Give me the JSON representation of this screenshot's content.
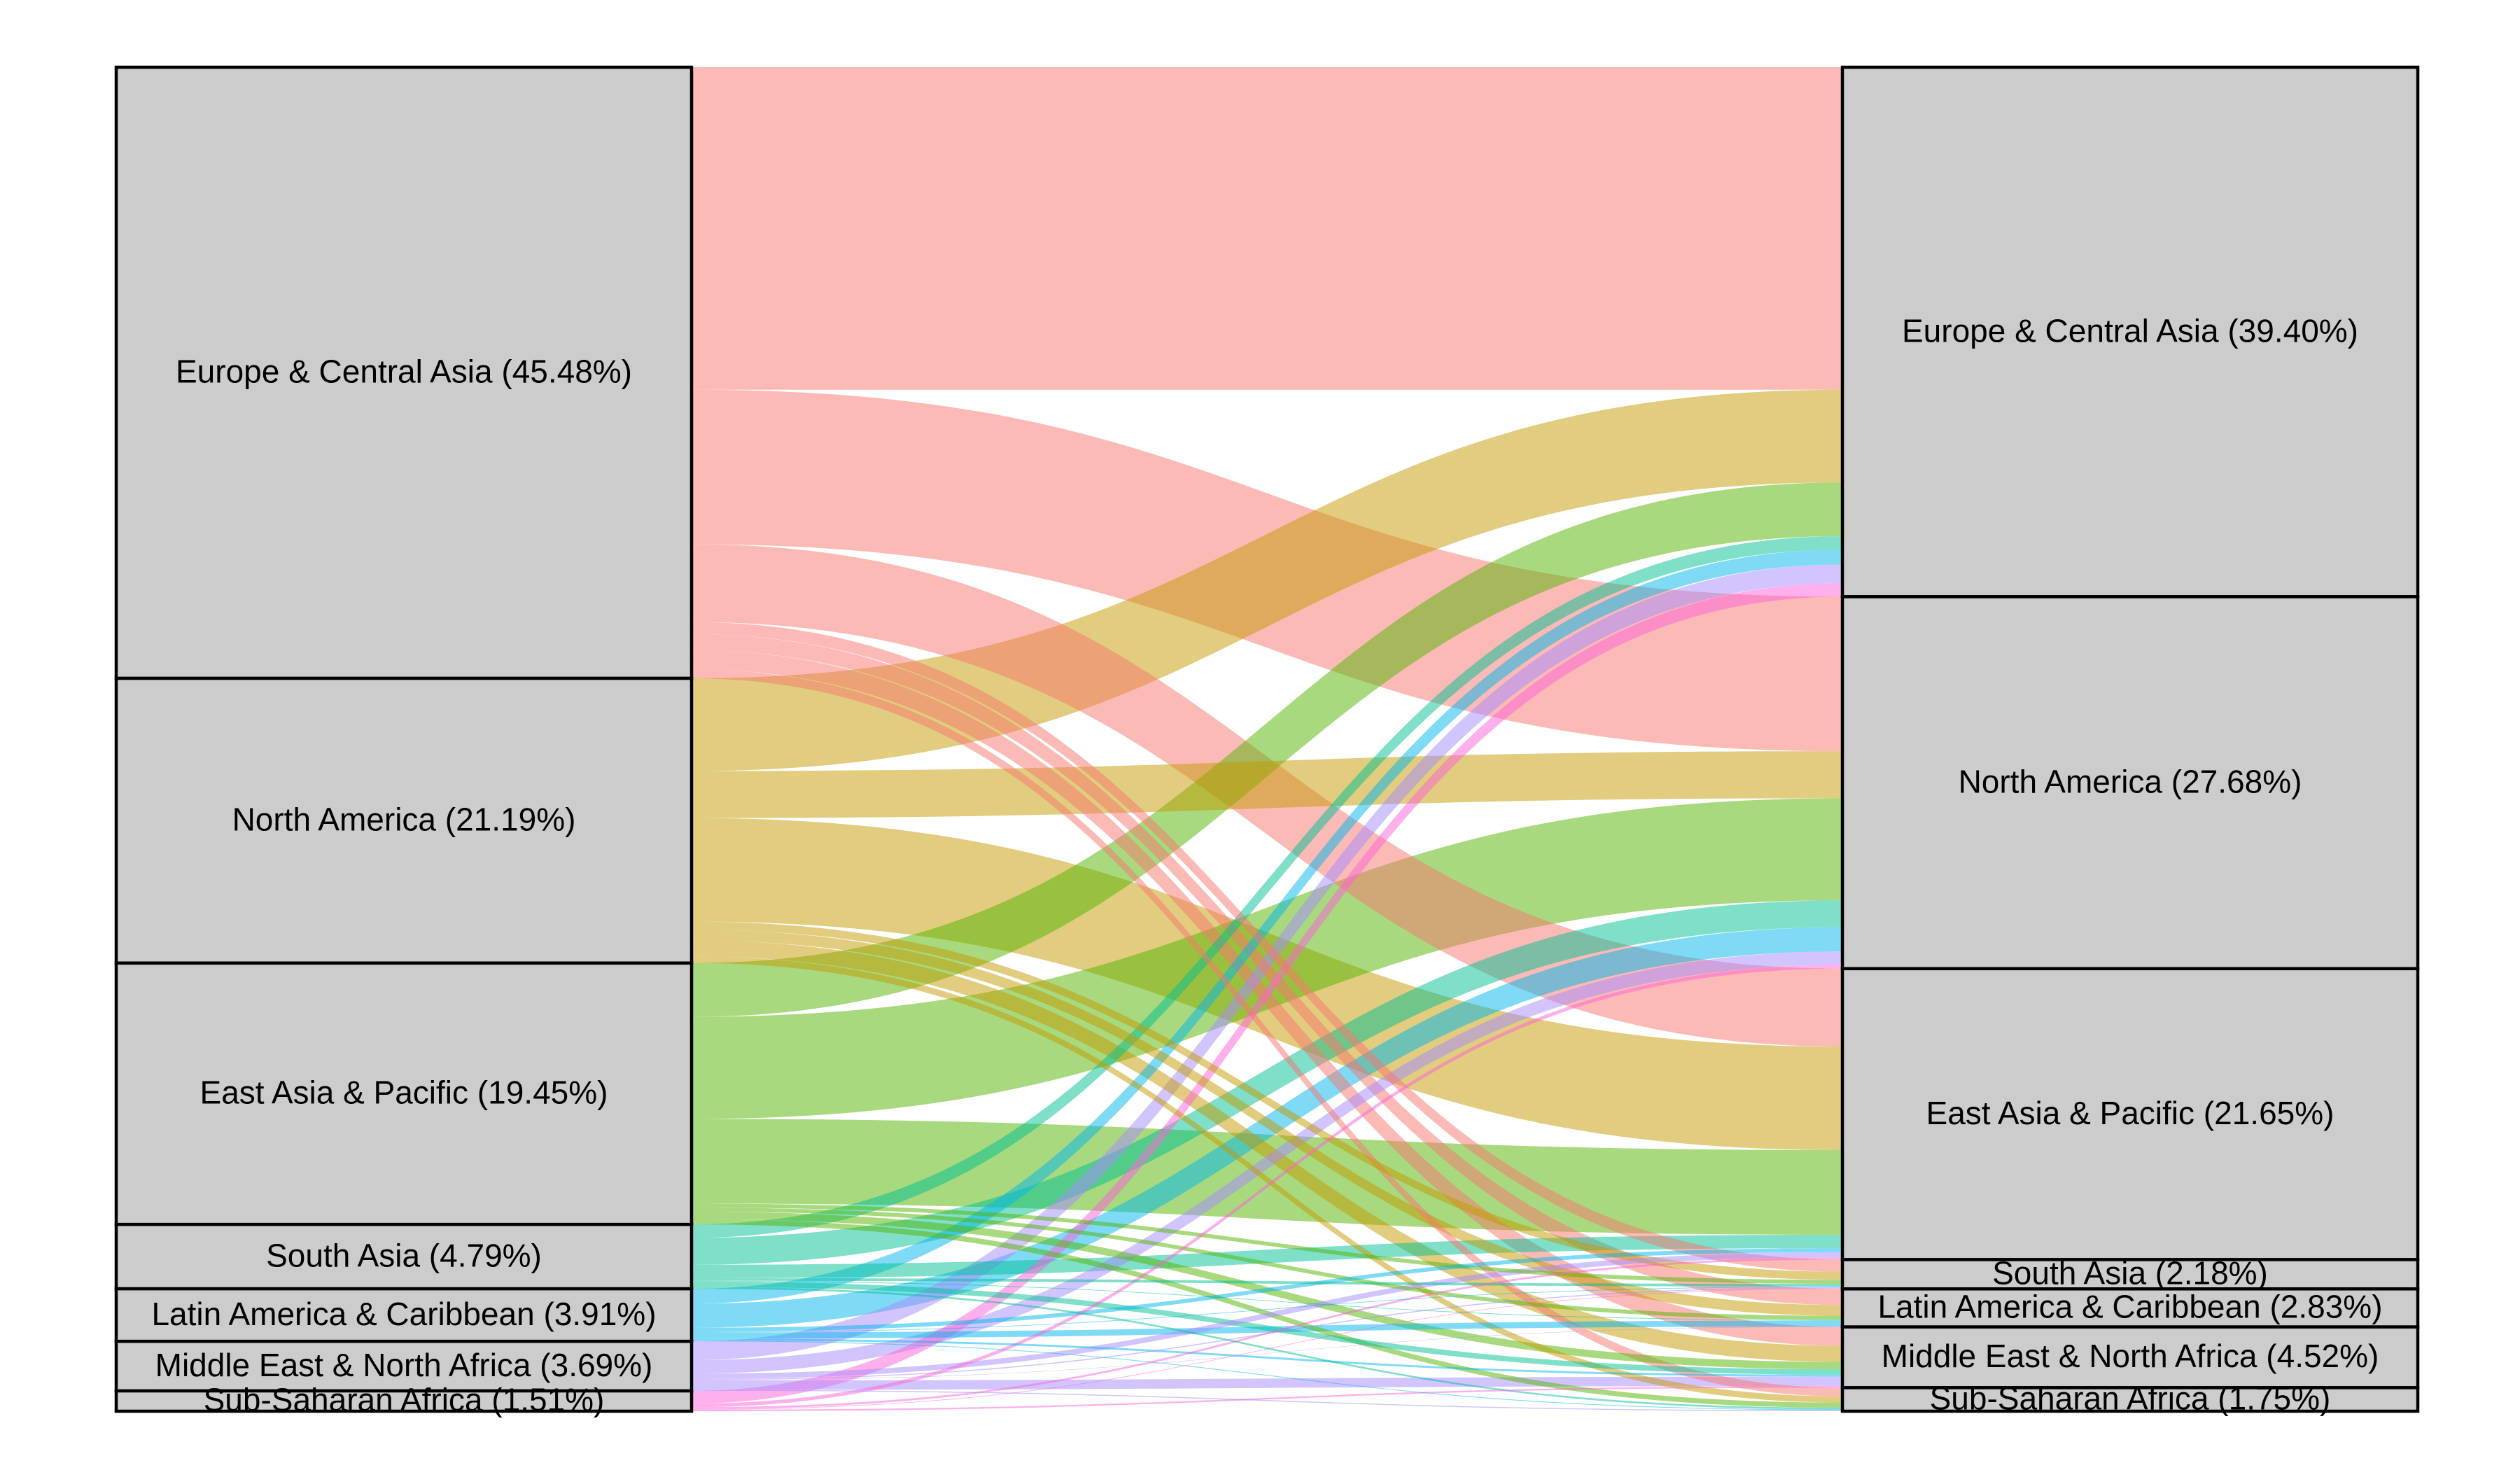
{
  "chart_data": {
    "type": "sankey",
    "title": "",
    "units": "%",
    "left_nodes": [
      {
        "id": "eca",
        "label": "Europe & Central Asia (45.48%)",
        "value": 45.48,
        "color": "#f8766d"
      },
      {
        "id": "na",
        "label": "North America (21.19%)",
        "value": 21.19,
        "color": "#c49a00"
      },
      {
        "id": "eap",
        "label": "East Asia & Pacific (19.45%)",
        "value": 19.45,
        "color": "#53b400"
      },
      {
        "id": "sa",
        "label": "South Asia (4.79%)",
        "value": 4.79,
        "color": "#00c094"
      },
      {
        "id": "lac",
        "label": "Latin America & Caribbean (3.91%)",
        "value": 3.91,
        "color": "#00b6eb"
      },
      {
        "id": "mena",
        "label": "Middle East & North Africa (3.69%)",
        "value": 3.69,
        "color": "#a58aff"
      },
      {
        "id": "ssa",
        "label": "Sub-Saharan Africa (1.51%)",
        "value": 1.51,
        "color": "#fb61d7"
      }
    ],
    "right_nodes": [
      {
        "id": "eca",
        "label": "Europe & Central Asia (39.40%)",
        "value": 39.4
      },
      {
        "id": "na",
        "label": "North America (27.68%)",
        "value": 27.68
      },
      {
        "id": "eap",
        "label": "East Asia & Pacific (21.65%)",
        "value": 21.65
      },
      {
        "id": "sa",
        "label": "South Asia (2.18%)",
        "value": 2.18
      },
      {
        "id": "lac",
        "label": "Latin America & Caribbean (2.83%)",
        "value": 2.83
      },
      {
        "id": "mena",
        "label": "Middle East & North Africa (4.52%)",
        "value": 4.52
      },
      {
        "id": "ssa",
        "label": "Sub-Saharan Africa (1.75%)",
        "value": 1.75
      }
    ],
    "flows": [
      {
        "from": "eca",
        "to": "eca",
        "value": 24.0
      },
      {
        "from": "eca",
        "to": "na",
        "value": 11.5
      },
      {
        "from": "eca",
        "to": "eap",
        "value": 5.8
      },
      {
        "from": "eca",
        "to": "sa",
        "value": 0.9
      },
      {
        "from": "eca",
        "to": "lac",
        "value": 1.2
      },
      {
        "from": "eca",
        "to": "mena",
        "value": 1.4
      },
      {
        "from": "eca",
        "to": "ssa",
        "value": 0.68
      },
      {
        "from": "na",
        "to": "eca",
        "value": 6.9
      },
      {
        "from": "na",
        "to": "na",
        "value": 3.5
      },
      {
        "from": "na",
        "to": "eap",
        "value": 7.7
      },
      {
        "from": "na",
        "to": "sa",
        "value": 0.6
      },
      {
        "from": "na",
        "to": "lac",
        "value": 0.8
      },
      {
        "from": "na",
        "to": "mena",
        "value": 1.2
      },
      {
        "from": "na",
        "to": "ssa",
        "value": 0.49
      },
      {
        "from": "eap",
        "to": "eca",
        "value": 4.0
      },
      {
        "from": "eap",
        "to": "na",
        "value": 7.6
      },
      {
        "from": "eap",
        "to": "eap",
        "value": 6.3
      },
      {
        "from": "eap",
        "to": "sa",
        "value": 0.3
      },
      {
        "from": "eap",
        "to": "lac",
        "value": 0.3
      },
      {
        "from": "eap",
        "to": "mena",
        "value": 0.55
      },
      {
        "from": "eap",
        "to": "ssa",
        "value": 0.4
      },
      {
        "from": "sa",
        "to": "eca",
        "value": 1.0
      },
      {
        "from": "sa",
        "to": "na",
        "value": 2.0
      },
      {
        "from": "sa",
        "to": "eap",
        "value": 1.0
      },
      {
        "from": "sa",
        "to": "sa",
        "value": 0.2
      },
      {
        "from": "sa",
        "to": "lac",
        "value": 0.05
      },
      {
        "from": "sa",
        "to": "mena",
        "value": 0.4
      },
      {
        "from": "sa",
        "to": "ssa",
        "value": 0.14
      },
      {
        "from": "lac",
        "to": "eca",
        "value": 1.1
      },
      {
        "from": "lac",
        "to": "na",
        "value": 1.8
      },
      {
        "from": "lac",
        "to": "eap",
        "value": 0.3
      },
      {
        "from": "lac",
        "to": "sa",
        "value": 0.05
      },
      {
        "from": "lac",
        "to": "lac",
        "value": 0.45
      },
      {
        "from": "lac",
        "to": "mena",
        "value": 0.15
      },
      {
        "from": "lac",
        "to": "ssa",
        "value": 0.06
      },
      {
        "from": "mena",
        "to": "eca",
        "value": 1.4
      },
      {
        "from": "mena",
        "to": "na",
        "value": 1.0
      },
      {
        "from": "mena",
        "to": "eap",
        "value": 0.4
      },
      {
        "from": "mena",
        "to": "sa",
        "value": 0.08
      },
      {
        "from": "mena",
        "to": "lac",
        "value": 0.03
      },
      {
        "from": "mena",
        "to": "mena",
        "value": 0.7
      },
      {
        "from": "mena",
        "to": "ssa",
        "value": 0.08
      },
      {
        "from": "ssa",
        "to": "eca",
        "value": 1.0
      },
      {
        "from": "ssa",
        "to": "na",
        "value": 0.28
      },
      {
        "from": "ssa",
        "to": "eap",
        "value": 0.15
      },
      {
        "from": "ssa",
        "to": "sa",
        "value": 0.05
      },
      {
        "from": "ssa",
        "to": "lac",
        "value": 0.0
      },
      {
        "from": "ssa",
        "to": "mena",
        "value": 0.12
      },
      {
        "from": "ssa",
        "to": "ssa",
        "value": 0.0
      }
    ]
  }
}
